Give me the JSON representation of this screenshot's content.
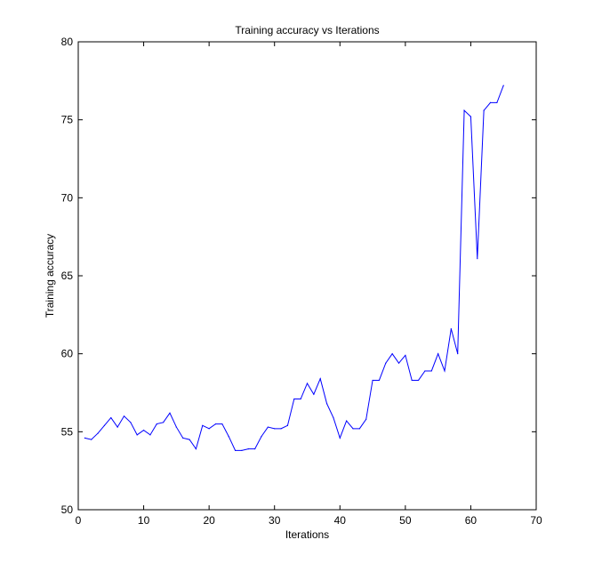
{
  "chart_data": {
    "type": "line",
    "title": "Training accuracy vs Iterations",
    "xlabel": "Iterations",
    "ylabel": "Training accuracy",
    "xlim": [
      0,
      70
    ],
    "ylim": [
      50,
      80
    ],
    "xticks": [
      0,
      10,
      20,
      30,
      40,
      50,
      60,
      70
    ],
    "yticks": [
      50,
      55,
      60,
      65,
      70,
      75,
      80
    ],
    "grid": false,
    "legend": "none",
    "series": [
      {
        "color": "#0000ff",
        "x": [
          1,
          2,
          3,
          4,
          5,
          6,
          7,
          8,
          9,
          10,
          11,
          12,
          13,
          14,
          15,
          16,
          17,
          18,
          19,
          20,
          21,
          22,
          23,
          24,
          25,
          26,
          27,
          28,
          29,
          30,
          31,
          32,
          33,
          34,
          35,
          36,
          37,
          38,
          39,
          40,
          41,
          42,
          43,
          44,
          45,
          46,
          47,
          48,
          49,
          50,
          51,
          52,
          53,
          54,
          55,
          56,
          57,
          58,
          59,
          60,
          61,
          62,
          63,
          64,
          65
        ],
        "values": [
          54.6,
          54.5,
          54.9,
          55.4,
          55.9,
          55.3,
          56.0,
          55.6,
          54.8,
          55.1,
          54.8,
          55.5,
          55.6,
          56.2,
          55.3,
          54.6,
          54.5,
          53.9,
          55.4,
          55.2,
          55.5,
          55.5,
          54.7,
          53.8,
          53.8,
          53.9,
          53.9,
          54.7,
          55.3,
          55.2,
          55.2,
          55.4,
          57.1,
          57.1,
          58.1,
          57.4,
          58.4,
          56.8,
          55.9,
          54.6,
          55.7,
          55.2,
          55.2,
          55.8,
          58.3,
          58.3,
          59.4,
          60.0,
          59.4,
          59.9,
          58.3,
          58.3,
          58.9,
          58.9,
          60.0,
          58.9,
          61.6,
          60.0,
          75.6,
          75.2,
          66.1,
          75.6,
          76.1,
          76.1,
          77.2
        ]
      }
    ]
  }
}
